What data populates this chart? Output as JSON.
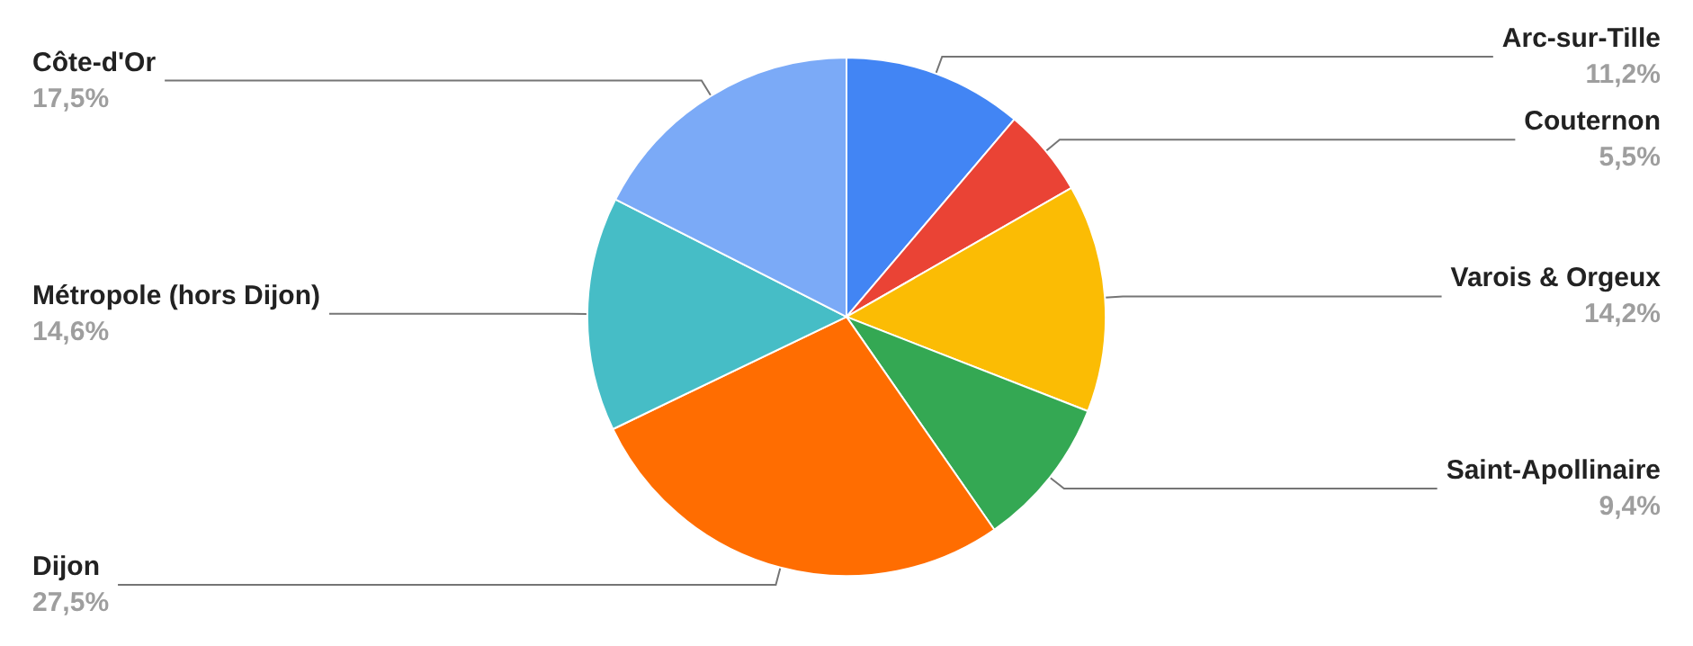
{
  "chart_data": {
    "type": "pie",
    "categories": [
      "Arc-sur-Tille",
      "Couternon",
      "Varois & Orgeux",
      "Saint-Apollinaire",
      "Dijon",
      "Métropole (hors Dijon)",
      "Côte-d'Or"
    ],
    "values": [
      11.2,
      5.5,
      14.2,
      9.4,
      27.5,
      14.6,
      17.5
    ],
    "value_labels": [
      "11,2%",
      "5,5%",
      "14,2%",
      "9,4%",
      "27,5%",
      "14,6%",
      "17,5%"
    ],
    "colors": [
      "#4285f4",
      "#ea4335",
      "#fbbc04",
      "#34a853",
      "#ff6d01",
      "#46bdc6",
      "#7baaf7"
    ],
    "legend": false
  }
}
